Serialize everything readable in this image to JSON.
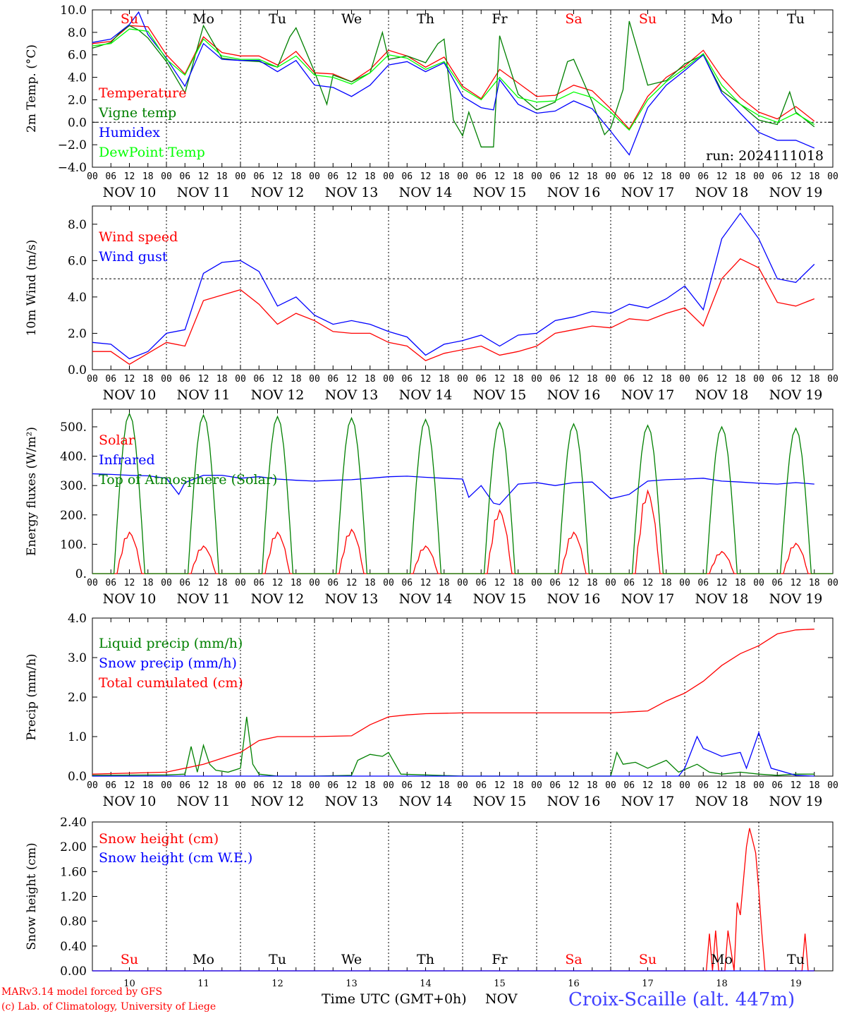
{
  "run_label": "run: 2024111018",
  "station": "Croix-Scaille (alt. 447m)",
  "credits": [
    "MARv3.14 model forced by GFS",
    "(c) Lab. of Climatology, University of Liege"
  ],
  "time_axis_title": "Time UTC (GMT+0h)",
  "time_axis_month": "NOV",
  "hour_ticks": [
    "00",
    "06",
    "12",
    "18"
  ],
  "date_labels": [
    "NOV 10",
    "NOV 11",
    "NOV 12",
    "NOV 13",
    "NOV 14",
    "NOV 15",
    "NOV 16",
    "NOV 17",
    "NOV 18",
    "NOV 19"
  ],
  "day_numbers": [
    "10",
    "11",
    "12",
    "13",
    "14",
    "15",
    "16",
    "17",
    "18",
    "19"
  ],
  "weekdays": [
    "Su",
    "Mo",
    "Tu",
    "We",
    "Th",
    "Fr",
    "Sa",
    "Su",
    "Mo",
    "Tu"
  ],
  "weekday_colors": [
    "#ff0000",
    "#000000",
    "#000000",
    "#000000",
    "#000000",
    "#000000",
    "#ff0000",
    "#ff0000",
    "#000000",
    "#000000"
  ],
  "colors": {
    "red": "#ff0000",
    "green": "#008000",
    "blue": "#0000ff",
    "lime": "#00ff00"
  },
  "chart_data": [
    {
      "type": "line",
      "ylabel": "2m Temp. (°C)",
      "ylim": [
        -4,
        10
      ],
      "yticks": [
        "10.0",
        "8.0",
        "6.0",
        "4.0",
        "2.0",
        "0.0",
        "−2.0",
        "−4.0"
      ],
      "reference_line": 0,
      "x_unit": "hours from NOV 10 00 UTC",
      "series": [
        {
          "name": "Temperature",
          "color": "#ff0000",
          "x": [
            0,
            6,
            12,
            18,
            24,
            30,
            36,
            42,
            48,
            54,
            60,
            66,
            72,
            78,
            84,
            90,
            96,
            102,
            108,
            114,
            120,
            126,
            132,
            138,
            144,
            150,
            156,
            162,
            168,
            174,
            180,
            186,
            192,
            198,
            204,
            210,
            216,
            222,
            228,
            234
          ],
          "y": [
            7.0,
            7.2,
            8.6,
            8.5,
            6.0,
            4.3,
            7.6,
            6.2,
            5.9,
            5.9,
            5.1,
            6.3,
            4.4,
            4.3,
            3.6,
            4.7,
            6.4,
            5.9,
            4.9,
            5.8,
            3.2,
            2.1,
            4.7,
            3.5,
            2.3,
            2.4,
            3.3,
            2.8,
            1.2,
            -0.6,
            2.3,
            4.0,
            5.0,
            6.4,
            4.0,
            2.2,
            0.9,
            0.3,
            1.4,
            0.1
          ]
        },
        {
          "name": "Vigne temp",
          "color": "#008000",
          "x": [
            0,
            6,
            9,
            12,
            15,
            18,
            24,
            30,
            36,
            42,
            48,
            54,
            60,
            64,
            66,
            72,
            76,
            78,
            84,
            90,
            94,
            96,
            102,
            108,
            112,
            114,
            117,
            120,
            122,
            126,
            130,
            132,
            138,
            144,
            150,
            154,
            156,
            162,
            166,
            168,
            172,
            174,
            180,
            186,
            192,
            198,
            204,
            210,
            216,
            222,
            226,
            228,
            234
          ],
          "y": [
            6.6,
            7.1,
            8.0,
            8.6,
            8.2,
            7.5,
            5.4,
            2.6,
            8.6,
            5.7,
            5.5,
            5.4,
            4.9,
            7.6,
            8.4,
            4.5,
            1.6,
            4.2,
            3.6,
            4.4,
            8.0,
            5.6,
            5.9,
            5.3,
            7.0,
            7.4,
            0.2,
            -1.2,
            0.9,
            -2.2,
            -2.2,
            7.7,
            2.5,
            1.1,
            1.8,
            5.4,
            5.6,
            1.8,
            -1.1,
            -0.5,
            2.9,
            9.0,
            3.3,
            3.7,
            5.2,
            6.0,
            2.8,
            1.6,
            0.2,
            -0.2,
            2.7,
            0.9,
            -0.4
          ]
        },
        {
          "name": "Humidex",
          "color": "#0000ff",
          "x": [
            0,
            6,
            12,
            15,
            18,
            24,
            30,
            36,
            42,
            48,
            54,
            60,
            66,
            72,
            78,
            84,
            90,
            96,
            102,
            108,
            114,
            120,
            126,
            130,
            132,
            138,
            144,
            150,
            156,
            162,
            168,
            174,
            180,
            186,
            192,
            198,
            204,
            210,
            216,
            222,
            228,
            234
          ],
          "y": [
            7.1,
            7.4,
            8.7,
            9.8,
            7.8,
            5.7,
            3.2,
            7.0,
            5.6,
            5.5,
            5.5,
            4.5,
            5.5,
            3.3,
            3.1,
            2.3,
            3.3,
            5.1,
            5.4,
            4.5,
            5.3,
            2.3,
            1.3,
            1.1,
            3.8,
            1.6,
            0.8,
            1.0,
            1.9,
            1.2,
            -0.8,
            -2.9,
            1.3,
            3.3,
            4.6,
            6.0,
            2.6,
            0.8,
            -0.9,
            -1.6,
            -1.6,
            -2.3
          ]
        },
        {
          "name": "DewPoint Temp",
          "color": "#00ff00",
          "x": [
            0,
            6,
            12,
            18,
            24,
            30,
            36,
            42,
            48,
            54,
            60,
            66,
            72,
            78,
            84,
            90,
            96,
            102,
            108,
            114,
            120,
            126,
            132,
            138,
            144,
            150,
            156,
            162,
            168,
            174,
            180,
            186,
            192,
            198,
            204,
            210,
            216,
            222,
            228,
            234
          ],
          "y": [
            6.8,
            7.0,
            8.3,
            8.1,
            5.6,
            4.2,
            7.4,
            5.9,
            5.6,
            5.6,
            4.9,
            5.9,
            4.2,
            4.0,
            3.4,
            4.4,
            6.0,
            5.7,
            4.7,
            5.4,
            3.0,
            2.0,
            4.0,
            2.2,
            1.8,
            1.9,
            2.7,
            2.2,
            0.9,
            -0.7,
            2.0,
            3.6,
            4.8,
            6.1,
            3.3,
            1.6,
            0.6,
            0.0,
            0.8,
            -0.2
          ]
        }
      ]
    },
    {
      "type": "line",
      "ylabel": "10m Wind (m/s)",
      "ylim": [
        0,
        9
      ],
      "yticks": [
        "8.0",
        "6.0",
        "4.0",
        "2.0",
        "0.0"
      ],
      "reference_line": 5,
      "series": [
        {
          "name": "Wind speed",
          "color": "#ff0000",
          "x": [
            0,
            6,
            12,
            18,
            24,
            30,
            36,
            42,
            48,
            54,
            60,
            66,
            72,
            78,
            84,
            90,
            96,
            102,
            108,
            114,
            120,
            126,
            132,
            138,
            144,
            150,
            156,
            162,
            168,
            174,
            180,
            186,
            192,
            198,
            204,
            210,
            216,
            222,
            228,
            234
          ],
          "y": [
            1.0,
            1.0,
            0.3,
            0.9,
            1.5,
            1.3,
            3.8,
            4.1,
            4.4,
            3.6,
            2.5,
            3.1,
            2.7,
            2.1,
            2.0,
            2.0,
            1.5,
            1.3,
            0.5,
            0.9,
            1.1,
            1.3,
            0.8,
            1.0,
            1.3,
            2.0,
            2.2,
            2.4,
            2.3,
            2.8,
            2.7,
            3.1,
            3.4,
            2.4,
            5.0,
            6.1,
            5.6,
            3.7,
            3.5,
            3.9
          ]
        },
        {
          "name": "Wind gust",
          "color": "#0000ff",
          "x": [
            0,
            6,
            12,
            18,
            24,
            30,
            36,
            42,
            48,
            54,
            60,
            66,
            72,
            78,
            84,
            90,
            96,
            102,
            108,
            114,
            120,
            126,
            132,
            138,
            144,
            150,
            156,
            162,
            168,
            174,
            180,
            186,
            192,
            198,
            204,
            210,
            216,
            222,
            228,
            234
          ],
          "y": [
            1.5,
            1.4,
            0.6,
            1.0,
            2.0,
            2.2,
            5.3,
            5.9,
            6.0,
            5.4,
            3.5,
            4.0,
            3.0,
            2.5,
            2.7,
            2.5,
            2.1,
            1.8,
            0.8,
            1.4,
            1.6,
            1.9,
            1.3,
            1.9,
            2.0,
            2.7,
            2.9,
            3.2,
            3.1,
            3.6,
            3.4,
            3.9,
            4.6,
            3.3,
            7.2,
            8.6,
            7.2,
            5.0,
            4.8,
            5.8
          ]
        }
      ]
    },
    {
      "type": "line",
      "ylabel": "Energy fluxes (W/m²)",
      "ylim": [
        0,
        560
      ],
      "yticks": [
        "500.",
        "400.",
        "300.",
        "200.",
        "100.",
        "0."
      ],
      "series": [
        {
          "name": "Solar",
          "color": "#ff0000",
          "day_peaks": [
            150,
            100,
            150,
            160,
            100,
            230,
            150,
            300,
            80,
            110
          ]
        },
        {
          "name": "Infrared",
          "color": "#0000ff",
          "x": [
            0,
            6,
            12,
            18,
            24,
            28,
            30,
            36,
            42,
            48,
            54,
            60,
            66,
            72,
            78,
            84,
            90,
            96,
            102,
            108,
            114,
            120,
            122,
            126,
            130,
            132,
            138,
            144,
            150,
            156,
            162,
            168,
            174,
            180,
            186,
            192,
            198,
            204,
            210,
            216,
            222,
            228,
            234
          ],
          "y": [
            340,
            338,
            335,
            333,
            325,
            270,
            310,
            335,
            335,
            325,
            330,
            322,
            318,
            315,
            318,
            320,
            325,
            330,
            332,
            328,
            325,
            322,
            260,
            300,
            240,
            235,
            305,
            310,
            300,
            310,
            312,
            255,
            270,
            315,
            320,
            322,
            325,
            315,
            312,
            308,
            305,
            310,
            305
          ]
        },
        {
          "name": "Top of Atmosphere (Solar)",
          "color": "#008000",
          "day_peaks": [
            545,
            540,
            535,
            530,
            525,
            515,
            510,
            505,
            500,
            495
          ]
        }
      ]
    },
    {
      "type": "line",
      "ylabel": "Precip (mm/h)",
      "ylim": [
        0,
        4
      ],
      "yticks": [
        "4.0",
        "3.0",
        "2.0",
        "1.0",
        "0.0"
      ],
      "series": [
        {
          "name": "Liquid precip (mm/h)",
          "color": "#008000",
          "x": [
            0,
            24,
            30,
            32,
            34,
            36,
            38,
            40,
            44,
            48,
            50,
            52,
            54,
            60,
            72,
            84,
            86,
            90,
            94,
            96,
            100,
            120,
            144,
            168,
            170,
            172,
            176,
            180,
            186,
            190,
            196,
            200,
            204,
            210,
            216,
            222,
            228,
            234
          ],
          "y": [
            0.02,
            0.03,
            0.05,
            0.75,
            0.1,
            0.78,
            0.3,
            0.15,
            0.1,
            0.2,
            1.5,
            0.3,
            0.05,
            0.0,
            0.0,
            0.02,
            0.4,
            0.55,
            0.5,
            0.6,
            0.05,
            0.0,
            0.0,
            0.0,
            0.6,
            0.3,
            0.35,
            0.2,
            0.4,
            0.1,
            0.3,
            0.1,
            0.05,
            0.1,
            0.05,
            0.02,
            0.05,
            0.05
          ]
        },
        {
          "name": "Snow precip (mm/h)",
          "color": "#0000ff",
          "x": [
            0,
            168,
            190,
            192,
            196,
            198,
            204,
            210,
            212,
            216,
            220,
            228,
            234
          ],
          "y": [
            0.0,
            0.0,
            0.0,
            0.2,
            1.0,
            0.7,
            0.5,
            0.6,
            0.2,
            1.1,
            0.2,
            0.02,
            0.0
          ]
        },
        {
          "name": "Total cumulated (cm)",
          "color": "#ff0000",
          "x": [
            0,
            24,
            36,
            42,
            48,
            54,
            60,
            72,
            84,
            90,
            96,
            102,
            108,
            120,
            144,
            168,
            180,
            186,
            192,
            198,
            204,
            210,
            216,
            222,
            228,
            234
          ],
          "y": [
            0.05,
            0.1,
            0.3,
            0.45,
            0.6,
            0.9,
            1.0,
            1.0,
            1.02,
            1.3,
            1.5,
            1.55,
            1.58,
            1.6,
            1.6,
            1.6,
            1.65,
            1.9,
            2.1,
            2.4,
            2.8,
            3.1,
            3.3,
            3.6,
            3.7,
            3.72
          ]
        }
      ]
    },
    {
      "type": "line",
      "ylabel": "Snow height (cm)",
      "ylim": [
        0,
        2.4
      ],
      "yticks": [
        "2.40",
        "2.00",
        "1.60",
        "1.20",
        "0.80",
        "0.40",
        "0.00"
      ],
      "series": [
        {
          "name": "Snow height (cm)",
          "color": "#ff0000",
          "x": [
            0,
            198,
            199,
            200,
            201,
            202,
            203,
            204,
            205,
            206,
            208,
            209,
            210,
            212,
            213,
            214,
            215,
            216,
            217,
            218,
            220,
            222,
            224,
            226,
            228,
            230,
            231,
            232,
            233,
            234
          ],
          "y": [
            0,
            0,
            0,
            0.6,
            0,
            0.65,
            0,
            0,
            0,
            0.65,
            0,
            1.1,
            0.9,
            2.0,
            2.3,
            2.1,
            1.9,
            1.3,
            0.6,
            0,
            0,
            0,
            0,
            0,
            0,
            0,
            0.6,
            0,
            0,
            0
          ]
        },
        {
          "name": "Snow height (cm W.E.)",
          "color": "#0000ff",
          "x": [
            0,
            234
          ],
          "y": [
            0,
            0
          ]
        }
      ]
    }
  ]
}
